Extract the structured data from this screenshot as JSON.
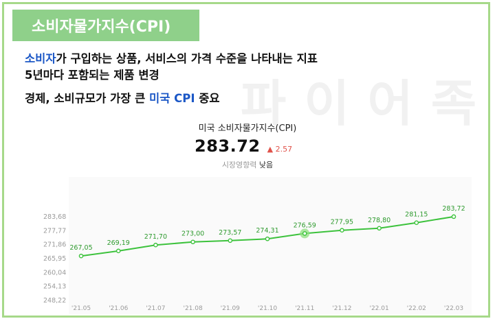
{
  "header": {
    "title": "소비자물가지수(CPI)"
  },
  "watermark": "파이어족",
  "text": {
    "line1_blue": "소비자",
    "line1_rest": "가 구입하는 상품, 서비스의 가격 수준을 나타내는 지표",
    "line2": "5년마다 포함되는 제품 변경",
    "line3_start": "경제, 소비규모가 가장 큰 ",
    "line3_blue": "미국 CPI",
    "line3_end": " 중요"
  },
  "widget": {
    "title": "미국 소비자물가지수(CPI)",
    "value": "283.72",
    "change": "2.57",
    "impact_label": "시장영향력",
    "impact_value": "낮음"
  },
  "chart_data": {
    "type": "line",
    "categories": [
      "'21.05",
      "'21.06",
      "'21.07",
      "'21.08",
      "'21.09",
      "'21.10",
      "'21.11",
      "'21.12",
      "'22.01",
      "'22.02",
      "'22.03"
    ],
    "values": [
      267.05,
      269.19,
      271.7,
      273.0,
      273.57,
      274.31,
      276.59,
      277.95,
      278.8,
      281.15,
      283.72
    ],
    "data_labels": [
      "267,05",
      "269,19",
      "271,70",
      "273,00",
      "273,57",
      "274,31",
      "276,59",
      "277,95",
      "278,80",
      "281,15",
      "283,72"
    ],
    "y_ticks": [
      248.22,
      254.13,
      260.04,
      265.95,
      271.86,
      277.77,
      283.68
    ],
    "y_tick_labels": [
      "248,22",
      "254,13",
      "260,04",
      "265,95",
      "271,86",
      "277,77",
      "283,68"
    ],
    "ylim": [
      248.22,
      283.68
    ],
    "highlight_index": 6,
    "grid": false,
    "line_color": "#3cc23c",
    "highlight_color": "#8fe07f"
  }
}
